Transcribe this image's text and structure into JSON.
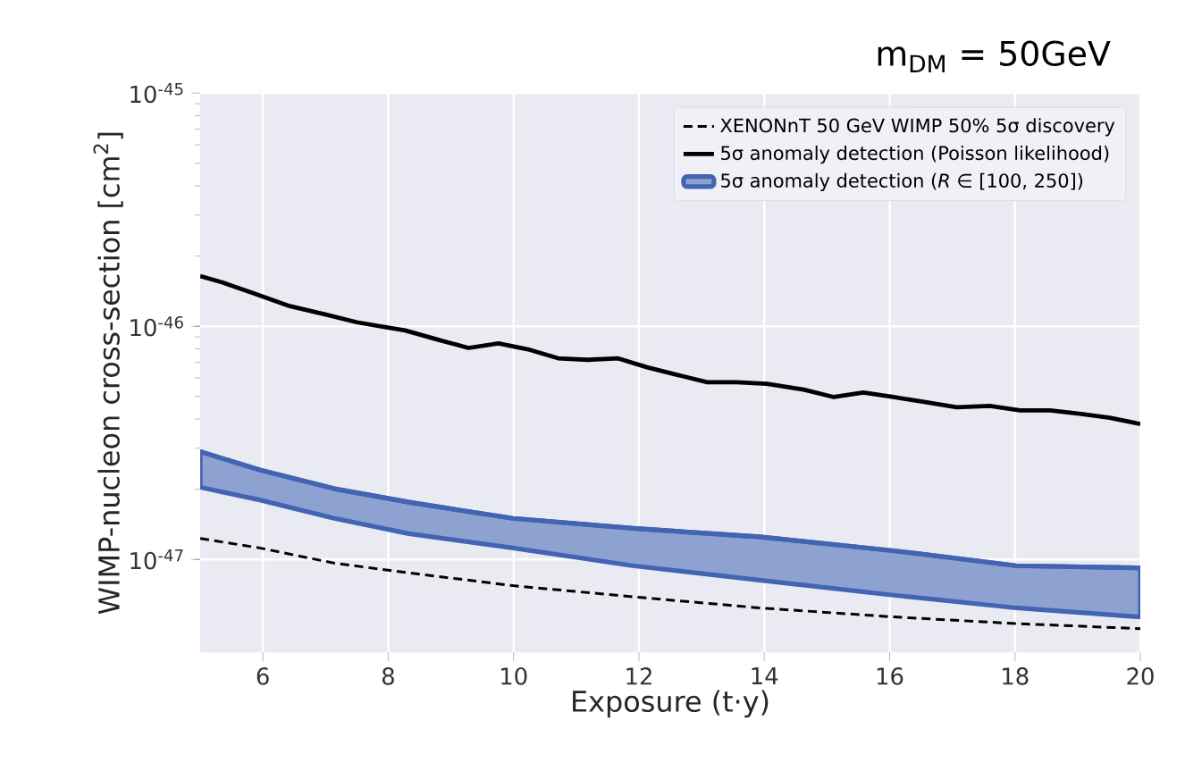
{
  "chart_data": {
    "type": "line",
    "xlabel": "Exposure (t·y)",
    "ylabel": "WIMP-nucleon cross-section [cm$^{2}$]",
    "annotations": [
      "m$_{DM}$ = 50GeV"
    ],
    "log": "y",
    "grid": true,
    "legend": "top right",
    "xlim": [
      5,
      20
    ],
    "xticks": [
      6,
      8,
      10,
      12,
      14,
      16,
      18,
      20
    ],
    "ylim": [
      4e-48,
      1e-45
    ],
    "yticks": [
      {
        "value": 1e-47,
        "label": "10$^{-47}$"
      },
      {
        "value": 1e-46,
        "label": "10$^{-46}$"
      },
      {
        "value": 1e-45,
        "label": "10$^{-45}$"
      }
    ],
    "series": [
      {
        "name": "XENONnT 50 GeV WIMP 50% 5σ discovery",
        "line_style": "dashed",
        "color": "#000000",
        "x": [
          5,
          5.95,
          7.14,
          8.33,
          9.99,
          11.9,
          13.92,
          16.06,
          18.02,
          20
        ],
        "values": [
          1.23e-47,
          1.12e-47,
          9.64e-48,
          8.76e-48,
          7.72e-48,
          6.92e-48,
          6.2e-48,
          5.67e-48,
          5.31e-48,
          5.05e-48
        ]
      },
      {
        "name": "5σ anomaly detection (Poisson likelihood)",
        "line_style": "solid",
        "color": "#000000",
        "x": [
          5,
          5.36,
          5.83,
          6.43,
          7.02,
          7.5,
          7.97,
          8.27,
          8.8,
          9.28,
          9.76,
          10.23,
          10.71,
          11.18,
          11.66,
          12.13,
          12.61,
          13.09,
          13.56,
          14.04,
          14.63,
          15.11,
          15.58,
          16.06,
          16.53,
          17.07,
          17.6,
          18.08,
          18.56,
          19.03,
          19.51,
          20
        ],
        "values": [
          1.64e-46,
          1.54e-46,
          1.39e-46,
          1.22e-46,
          1.12e-46,
          1.04e-46,
          9.9e-47,
          9.6e-47,
          8.75e-47,
          8.07e-47,
          8.45e-47,
          7.96e-47,
          7.29e-47,
          7.18e-47,
          7.29e-47,
          6.67e-47,
          6.19e-47,
          5.75e-47,
          5.75e-47,
          5.67e-47,
          5.35e-47,
          4.97e-47,
          5.2e-47,
          4.97e-47,
          4.75e-47,
          4.49e-47,
          4.55e-47,
          4.36e-47,
          4.36e-47,
          4.22e-47,
          4.05e-47,
          3.81e-47
        ]
      },
      {
        "name": "5σ anomaly detection (*R* ∈ [100, 250])",
        "color": "#4264b2",
        "line_style": "solid",
        "x": [
          5,
          5.95,
          7.14,
          8.33,
          9.99,
          11.9,
          13.92,
          16.06,
          18.02,
          20
        ],
        "values": [
          2.9e-47,
          2.42e-47,
          2.01e-47,
          1.76e-47,
          1.5e-47,
          1.36e-47,
          1.25e-47,
          1.09e-47,
          9.4e-48,
          9.2e-48
        ],
        "lower": [
          2.04e-47,
          1.8e-47,
          1.5e-47,
          1.29e-47,
          1.12e-47,
          9.4e-48,
          8.15e-48,
          7.03e-48,
          6.2e-48,
          5.67e-48
        ],
        "upper": [
          2.9e-47,
          2.42e-47,
          2.01e-47,
          1.76e-47,
          1.5e-47,
          1.36e-47,
          1.25e-47,
          1.09e-47,
          9.4e-48,
          9.2e-48
        ]
      }
    ]
  }
}
